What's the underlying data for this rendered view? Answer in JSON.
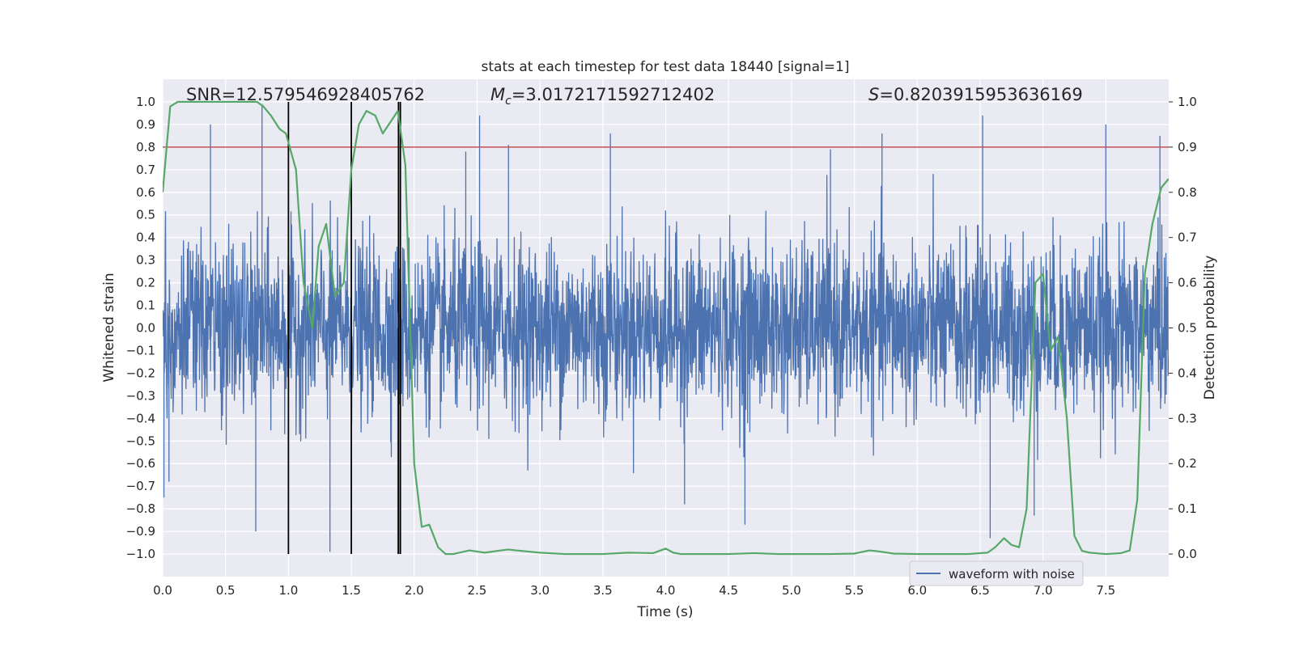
{
  "chart_data": {
    "type": "line",
    "title": "stats at each timestep for test data 18440 [signal=1]",
    "xlabel": "Time (s)",
    "ylabel_left": "Whitened strain",
    "ylabel_right": "Detection probability",
    "xlim": [
      0.0,
      8.0
    ],
    "ylim_left": [
      -1.1,
      1.1
    ],
    "ylim_right": [
      -0.05,
      1.05
    ],
    "xticks": [
      "0.0",
      "0.5",
      "1.0",
      "1.5",
      "2.0",
      "2.5",
      "3.0",
      "3.5",
      "4.0",
      "4.5",
      "5.0",
      "5.5",
      "6.0",
      "6.5",
      "7.0",
      "7.5"
    ],
    "xtick_values": [
      0.0,
      0.5,
      1.0,
      1.5,
      2.0,
      2.5,
      3.0,
      3.5,
      4.0,
      4.5,
      5.0,
      5.5,
      6.0,
      6.5,
      7.0,
      7.5
    ],
    "yticks_left": [
      "1.0",
      "0.9",
      "0.8",
      "0.7",
      "0.6",
      "0.5",
      "0.4",
      "0.3",
      "0.2",
      "0.1",
      "0.0",
      "−0.1",
      "−0.2",
      "−0.3",
      "−0.4",
      "−0.5",
      "−0.6",
      "−0.7",
      "−0.8",
      "−0.9",
      "−1.0"
    ],
    "ytick_values_left": [
      1.0,
      0.9,
      0.8,
      0.7,
      0.6,
      0.5,
      0.4,
      0.3,
      0.2,
      0.1,
      0.0,
      -0.1,
      -0.2,
      -0.3,
      -0.4,
      -0.5,
      -0.6,
      -0.7,
      -0.8,
      -0.9,
      -1.0
    ],
    "yticks_right": [
      "1.0",
      "0.9",
      "0.8",
      "0.7",
      "0.6",
      "0.5",
      "0.4",
      "0.3",
      "0.2",
      "0.1",
      "0.0"
    ],
    "ytick_values_right": [
      1.0,
      0.9,
      0.8,
      0.7,
      0.6,
      0.5,
      0.4,
      0.3,
      0.2,
      0.1,
      0.0
    ],
    "annotations": {
      "snr": "SNR=12.579546928405762",
      "mc_symbol": "M",
      "mc_sub": "c",
      "mc_value": "=3.0172171592712402",
      "s_symbol": "S",
      "s_value": "=0.8203915953636169"
    },
    "legend": {
      "label": "waveform with noise",
      "placement": "lower-right"
    },
    "threshold": {
      "value": 0.9,
      "axis": "right",
      "color": "#c44e52"
    },
    "vertical_markers": [
      1.0,
      1.5,
      1.875,
      1.89
    ],
    "waveform": {
      "name": "waveform with noise",
      "color": "#4c72b0",
      "description_range": [
        -1.0,
        1.0
      ],
      "seed": 18440,
      "spikes": [
        {
          "t": 0.01,
          "v": -0.75
        },
        {
          "t": 0.05,
          "v": -0.68
        },
        {
          "t": 0.38,
          "v": 0.9
        },
        {
          "t": 0.74,
          "v": -0.9
        },
        {
          "t": 0.79,
          "v": 0.99
        },
        {
          "t": 1.33,
          "v": -0.99
        },
        {
          "t": 1.87,
          "v": -1.0
        },
        {
          "t": 2.52,
          "v": 0.94
        },
        {
          "t": 2.75,
          "v": 0.81
        },
        {
          "t": 3.56,
          "v": 0.86
        },
        {
          "t": 4.15,
          "v": -0.78
        },
        {
          "t": 4.63,
          "v": -0.87
        },
        {
          "t": 5.72,
          "v": 0.86
        },
        {
          "t": 6.52,
          "v": 0.94
        },
        {
          "t": 6.58,
          "v": -0.93
        },
        {
          "t": 6.93,
          "v": -0.83
        },
        {
          "t": 7.5,
          "v": 0.9
        },
        {
          "t": 7.93,
          "v": 0.85
        },
        {
          "t": 2.41,
          "v": 0.78
        },
        {
          "t": 5.31,
          "v": 0.79
        }
      ]
    },
    "series": [
      {
        "name": "detection probability",
        "color": "#55a868",
        "axis": "right",
        "x": [
          0.0,
          0.06,
          0.12,
          0.3,
          0.5,
          0.75,
          0.8,
          0.86,
          0.93,
          0.98,
          1.06,
          1.12,
          1.19,
          1.24,
          1.3,
          1.37,
          1.44,
          1.5,
          1.56,
          1.62,
          1.69,
          1.75,
          1.87,
          1.93,
          2.0,
          2.06,
          2.12,
          2.19,
          2.25,
          2.31,
          2.44,
          2.56,
          2.69,
          2.75,
          2.81,
          3.0,
          3.2,
          3.5,
          3.7,
          3.9,
          4.0,
          4.06,
          4.12,
          4.3,
          4.5,
          4.7,
          4.9,
          5.1,
          5.3,
          5.5,
          5.62,
          5.69,
          5.81,
          6.0,
          6.2,
          6.4,
          6.56,
          6.62,
          6.69,
          6.75,
          6.81,
          6.87,
          6.94,
          7.0,
          7.06,
          7.12,
          7.19,
          7.25,
          7.31,
          7.37,
          7.5,
          7.62,
          7.69,
          7.75,
          7.81,
          7.87,
          7.94,
          8.0
        ],
        "y": [
          0.8,
          0.99,
          1.0,
          1.0,
          1.0,
          1.0,
          0.99,
          0.97,
          0.94,
          0.93,
          0.85,
          0.6,
          0.5,
          0.68,
          0.73,
          0.57,
          0.6,
          0.85,
          0.95,
          0.98,
          0.97,
          0.93,
          0.98,
          0.86,
          0.2,
          0.06,
          0.065,
          0.015,
          0.0,
          0.0,
          0.008,
          0.003,
          0.008,
          0.01,
          0.008,
          0.003,
          0.0,
          0.0,
          0.003,
          0.002,
          0.012,
          0.003,
          0.0,
          0.0,
          0.0,
          0.002,
          0.0,
          0.0,
          0.0,
          0.001,
          0.008,
          0.006,
          0.001,
          0.0,
          0.0,
          0.0,
          0.003,
          0.015,
          0.035,
          0.02,
          0.015,
          0.1,
          0.6,
          0.62,
          0.45,
          0.48,
          0.3,
          0.04,
          0.007,
          0.003,
          0.0,
          0.002,
          0.008,
          0.12,
          0.62,
          0.73,
          0.81,
          0.83
        ]
      }
    ]
  }
}
